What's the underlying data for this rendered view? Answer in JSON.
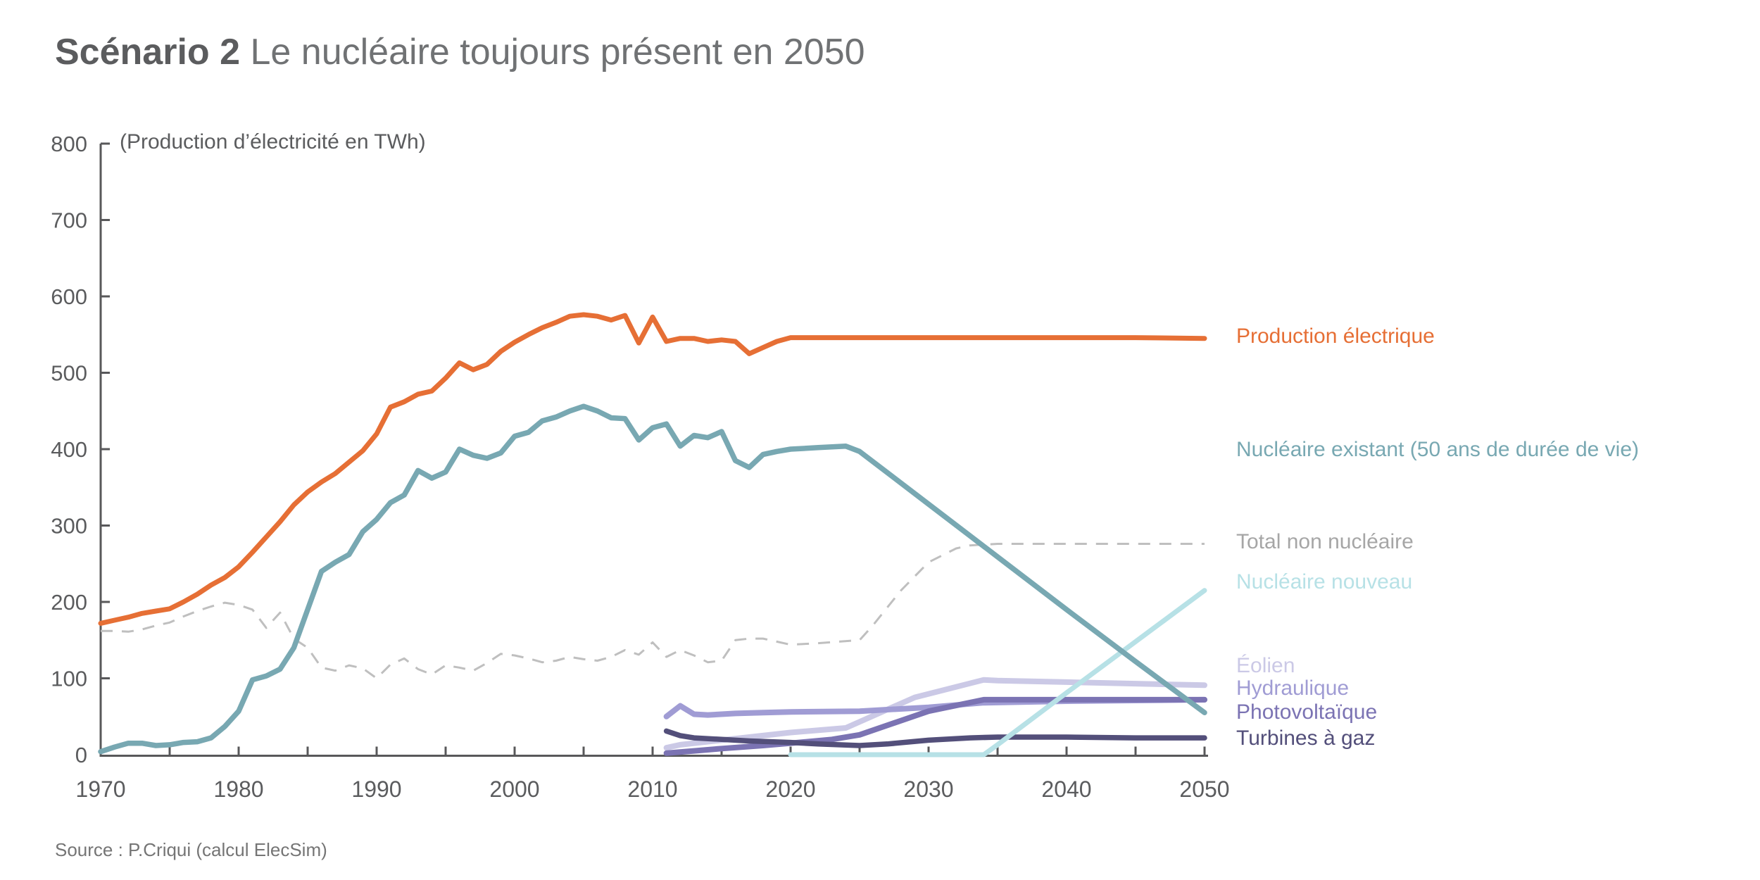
{
  "title": {
    "bold": "Scénario 2",
    "rest": "Le nucléaire toujours présent en 2050"
  },
  "source": "Source : P.Criqui (calcul ElecSim)",
  "chart_data": {
    "type": "line",
    "title": "Scénario 2 Le nucléaire toujours présent en 2050",
    "unit_label": "(Production d’électricité en TWh)",
    "xlabel": "",
    "ylabel": "Production d’électricité en TWh",
    "grid": false,
    "legend_position": "right",
    "x_axis": {
      "min": 1970,
      "max": 2050,
      "labeled_ticks": [
        1970,
        1980,
        1990,
        2000,
        2010,
        2020,
        2030,
        2040,
        2050
      ],
      "minor_tick_step": 5
    },
    "y_axis": {
      "min": 0,
      "max": 800,
      "ticks": [
        0,
        100,
        200,
        300,
        400,
        500,
        600,
        700,
        800
      ]
    },
    "series": [
      {
        "id": "total_non_nucleaire",
        "label": "Total non nucléaire",
        "color": "#bfbfbf",
        "label_color": "#a6a6a6",
        "style": "dashed",
        "width": 3,
        "points": [
          [
            1970,
            162
          ],
          [
            1971,
            162
          ],
          [
            1972,
            161
          ],
          [
            1973,
            164
          ],
          [
            1974,
            169
          ],
          [
            1975,
            173
          ],
          [
            1976,
            181
          ],
          [
            1977,
            188
          ],
          [
            1978,
            194
          ],
          [
            1979,
            199
          ],
          [
            1980,
            196
          ],
          [
            1981,
            190
          ],
          [
            1982,
            166
          ],
          [
            1983,
            186
          ],
          [
            1984,
            152
          ],
          [
            1985,
            140
          ],
          [
            1986,
            114
          ],
          [
            1987,
            110
          ],
          [
            1988,
            117
          ],
          [
            1989,
            113
          ],
          [
            1990,
            100
          ],
          [
            1991,
            118
          ],
          [
            1992,
            126
          ],
          [
            1993,
            112
          ],
          [
            1994,
            105
          ],
          [
            1995,
            117
          ],
          [
            1996,
            114
          ],
          [
            1997,
            110
          ],
          [
            1998,
            120
          ],
          [
            1999,
            132
          ],
          [
            2000,
            130
          ],
          [
            2001,
            126
          ],
          [
            2002,
            121
          ],
          [
            2003,
            123
          ],
          [
            2004,
            128
          ],
          [
            2005,
            125
          ],
          [
            2006,
            123
          ],
          [
            2007,
            128
          ],
          [
            2008,
            137
          ],
          [
            2009,
            131
          ],
          [
            2010,
            147
          ],
          [
            2011,
            128
          ],
          [
            2012,
            137
          ],
          [
            2013,
            130
          ],
          [
            2014,
            121
          ],
          [
            2015,
            123
          ],
          [
            2016,
            150
          ],
          [
            2017,
            152
          ],
          [
            2018,
            152
          ],
          [
            2019,
            148
          ],
          [
            2020,
            144
          ],
          [
            2022,
            146
          ],
          [
            2025,
            150
          ],
          [
            2026,
            170
          ],
          [
            2028,
            215
          ],
          [
            2030,
            252
          ],
          [
            2032,
            270
          ],
          [
            2033,
            274
          ],
          [
            2035,
            276
          ],
          [
            2040,
            276
          ],
          [
            2045,
            276
          ],
          [
            2050,
            276
          ]
        ]
      },
      {
        "id": "eolien",
        "label": "Éolien",
        "color": "#cbc9e6",
        "style": "solid",
        "width": 8,
        "points": [
          [
            2011,
            9
          ],
          [
            2012,
            13
          ],
          [
            2015,
            19
          ],
          [
            2020,
            29
          ],
          [
            2024,
            35
          ],
          [
            2029,
            75
          ],
          [
            2034,
            98
          ],
          [
            2035,
            97
          ],
          [
            2040,
            95
          ],
          [
            2045,
            93
          ],
          [
            2050,
            91
          ]
        ]
      },
      {
        "id": "hydraulique",
        "label": "Hydraulique",
        "color": "#a09cd4",
        "style": "solid",
        "width": 8,
        "points": [
          [
            2011,
            50
          ],
          [
            2012,
            64
          ],
          [
            2013,
            53
          ],
          [
            2014,
            52
          ],
          [
            2016,
            54
          ],
          [
            2018,
            55
          ],
          [
            2020,
            56
          ],
          [
            2025,
            57
          ],
          [
            2030,
            62
          ],
          [
            2034,
            68
          ],
          [
            2040,
            70
          ],
          [
            2045,
            71
          ],
          [
            2050,
            72
          ]
        ]
      },
      {
        "id": "photovoltaique",
        "label": "Photovoltaïque",
        "color": "#7b73b3",
        "style": "solid",
        "width": 8,
        "points": [
          [
            2011,
            2
          ],
          [
            2013,
            5
          ],
          [
            2015,
            8
          ],
          [
            2018,
            12
          ],
          [
            2020,
            15
          ],
          [
            2023,
            20
          ],
          [
            2025,
            26
          ],
          [
            2030,
            57
          ],
          [
            2034,
            72
          ],
          [
            2040,
            72
          ],
          [
            2045,
            72
          ],
          [
            2050,
            72
          ]
        ]
      },
      {
        "id": "turbines_a_gaz",
        "label": "Turbines à gaz",
        "color": "#534f7a",
        "style": "solid",
        "width": 7.5,
        "points": [
          [
            2011,
            31
          ],
          [
            2012,
            25
          ],
          [
            2013,
            22
          ],
          [
            2015,
            20
          ],
          [
            2017,
            18
          ],
          [
            2020,
            16
          ],
          [
            2022,
            14
          ],
          [
            2025,
            12
          ],
          [
            2027,
            14
          ],
          [
            2030,
            19
          ],
          [
            2033,
            22
          ],
          [
            2035,
            23
          ],
          [
            2040,
            23
          ],
          [
            2045,
            22
          ],
          [
            2050,
            22
          ]
        ]
      },
      {
        "id": "nucleaire_nouveau",
        "label": "Nucléaire nouveau",
        "color": "#b7e1e6",
        "style": "solid",
        "width": 7,
        "points": [
          [
            2020,
            0
          ],
          [
            2034,
            0
          ],
          [
            2035,
            13
          ],
          [
            2040,
            81
          ],
          [
            2045,
            148
          ],
          [
            2050,
            215
          ]
        ]
      },
      {
        "id": "nucleaire_existant",
        "label": "Nucléaire existant (50 ans de durée de vie)",
        "color": "#78a8b2",
        "style": "solid",
        "width": 7.5,
        "points": [
          [
            1970,
            4
          ],
          [
            1971,
            10
          ],
          [
            1972,
            15
          ],
          [
            1973,
            15
          ],
          [
            1974,
            12
          ],
          [
            1975,
            13
          ],
          [
            1976,
            16
          ],
          [
            1977,
            17
          ],
          [
            1978,
            22
          ],
          [
            1979,
            37
          ],
          [
            1980,
            57
          ],
          [
            1981,
            98
          ],
          [
            1982,
            103
          ],
          [
            1983,
            112
          ],
          [
            1984,
            140
          ],
          [
            1985,
            190
          ],
          [
            1986,
            240
          ],
          [
            1987,
            252
          ],
          [
            1988,
            262
          ],
          [
            1989,
            292
          ],
          [
            1990,
            308
          ],
          [
            1991,
            330
          ],
          [
            1992,
            340
          ],
          [
            1993,
            372
          ],
          [
            1994,
            362
          ],
          [
            1995,
            370
          ],
          [
            1996,
            400
          ],
          [
            1997,
            392
          ],
          [
            1998,
            388
          ],
          [
            1999,
            395
          ],
          [
            2000,
            417
          ],
          [
            2001,
            422
          ],
          [
            2002,
            437
          ],
          [
            2003,
            442
          ],
          [
            2004,
            450
          ],
          [
            2005,
            456
          ],
          [
            2006,
            450
          ],
          [
            2007,
            441
          ],
          [
            2008,
            440
          ],
          [
            2009,
            412
          ],
          [
            2010,
            428
          ],
          [
            2011,
            433
          ],
          [
            2012,
            404
          ],
          [
            2013,
            418
          ],
          [
            2014,
            415
          ],
          [
            2015,
            423
          ],
          [
            2016,
            385
          ],
          [
            2017,
            376
          ],
          [
            2018,
            393
          ],
          [
            2019,
            397
          ],
          [
            2020,
            400
          ],
          [
            2022,
            402
          ],
          [
            2024,
            404
          ],
          [
            2025,
            397
          ],
          [
            2030,
            328
          ],
          [
            2035,
            259
          ],
          [
            2040,
            190
          ],
          [
            2045,
            122
          ],
          [
            2050,
            55
          ]
        ]
      },
      {
        "id": "production_electrique",
        "label": "Production électrique",
        "color": "#e66f35",
        "style": "solid",
        "width": 7,
        "points": [
          [
            1970,
            172
          ],
          [
            1971,
            176
          ],
          [
            1972,
            180
          ],
          [
            1973,
            185
          ],
          [
            1974,
            188
          ],
          [
            1975,
            191
          ],
          [
            1976,
            200
          ],
          [
            1977,
            210
          ],
          [
            1978,
            222
          ],
          [
            1979,
            232
          ],
          [
            1980,
            246
          ],
          [
            1981,
            265
          ],
          [
            1982,
            285
          ],
          [
            1983,
            305
          ],
          [
            1984,
            327
          ],
          [
            1985,
            344
          ],
          [
            1986,
            357
          ],
          [
            1987,
            368
          ],
          [
            1988,
            383
          ],
          [
            1989,
            398
          ],
          [
            1990,
            420
          ],
          [
            1991,
            455
          ],
          [
            1992,
            462
          ],
          [
            1993,
            472
          ],
          [
            1994,
            476
          ],
          [
            1995,
            493
          ],
          [
            1996,
            513
          ],
          [
            1997,
            504
          ],
          [
            1998,
            511
          ],
          [
            1999,
            528
          ],
          [
            2000,
            540
          ],
          [
            2001,
            550
          ],
          [
            2002,
            559
          ],
          [
            2003,
            566
          ],
          [
            2004,
            574
          ],
          [
            2005,
            576
          ],
          [
            2006,
            574
          ],
          [
            2007,
            569
          ],
          [
            2008,
            575
          ],
          [
            2009,
            539
          ],
          [
            2010,
            573
          ],
          [
            2011,
            541
          ],
          [
            2012,
            545
          ],
          [
            2013,
            545
          ],
          [
            2014,
            541
          ],
          [
            2015,
            543
          ],
          [
            2016,
            541
          ],
          [
            2017,
            525
          ],
          [
            2018,
            533
          ],
          [
            2019,
            541
          ],
          [
            2020,
            546
          ],
          [
            2025,
            546
          ],
          [
            2030,
            546
          ],
          [
            2035,
            546
          ],
          [
            2040,
            546
          ],
          [
            2045,
            546
          ],
          [
            2050,
            545
          ]
        ]
      }
    ]
  }
}
